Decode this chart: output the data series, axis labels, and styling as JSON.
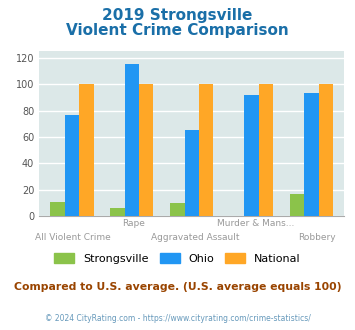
{
  "title_line1": "2019 Strongsville",
  "title_line2": "Violent Crime Comparison",
  "groups": 5,
  "strongsville": [
    11,
    6,
    10,
    0,
    17
  ],
  "ohio": [
    77,
    115,
    65,
    92,
    93
  ],
  "national": [
    100,
    100,
    100,
    100,
    100
  ],
  "x_labels_top": [
    "",
    "Rape",
    "",
    "Murder & Mans...",
    ""
  ],
  "x_labels_bottom": [
    "All Violent Crime",
    "",
    "Aggravated Assault",
    "",
    "Robbery"
  ],
  "color_strongsville": "#8bc34a",
  "color_ohio": "#2196f3",
  "color_national": "#ffa726",
  "ylim": [
    0,
    125
  ],
  "yticks": [
    0,
    20,
    40,
    60,
    80,
    100,
    120
  ],
  "background_color": "#dce8e8",
  "footer_text": "Compared to U.S. average. (U.S. average equals 100)",
  "copyright_text": "© 2024 CityRating.com - https://www.cityrating.com/crime-statistics/",
  "title_color": "#1a6fa8",
  "footer_color": "#994400",
  "copyright_color": "#6699bb"
}
